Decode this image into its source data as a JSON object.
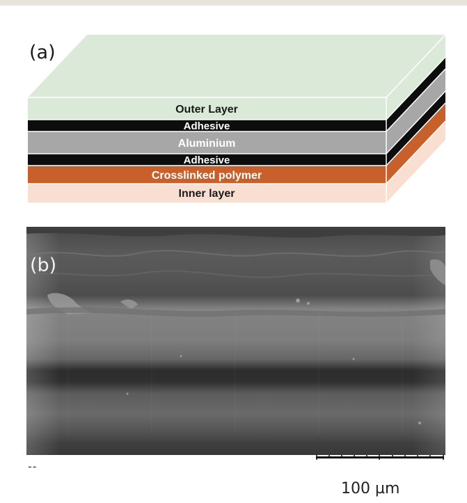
{
  "panel_a": {
    "label": "(a)",
    "layers": [
      {
        "name": "Outer Layer",
        "color": "#dbead8",
        "text_color": "#1a1a1a"
      },
      {
        "name": "Adhesive",
        "color": "#0d0d0d",
        "text_color": "#ffffff"
      },
      {
        "name": "Aluminium",
        "color": "#a7a7a7",
        "text_color": "#ffffff"
      },
      {
        "name": "Adhesive",
        "color": "#0d0d0d",
        "text_color": "#ffffff"
      },
      {
        "name": "Crosslinked polymer",
        "color": "#c8602c",
        "text_color": "#ffffff"
      },
      {
        "name": "Inner layer",
        "color": "#f8dfd2",
        "text_color": "#1a1a1a"
      }
    ]
  },
  "panel_b": {
    "label": "(b)",
    "dash_mark": "--",
    "scale_bar": {
      "label": "100 µm"
    }
  }
}
